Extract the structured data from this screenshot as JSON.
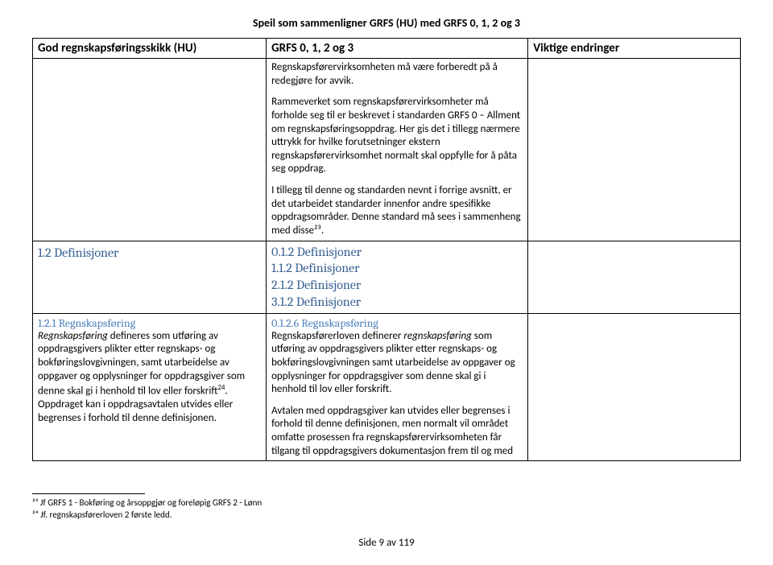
{
  "pageTitle": "Speil som sammenligner GRFS (HU) med GRFS 0, 1, 2 og 3",
  "headers": {
    "c1": "God regnskapsføringsskikk (HU)",
    "c2": "GRFS 0, 1, 2 og 3",
    "c3": "Viktige endringer"
  },
  "row1": {
    "c2p1": "Regnskapsførervirksomheten må være forberedt på å redegjøre for avvik.",
    "c2p2": "Rammeverket som regnskapsførervirksomheter må forholde seg til er beskrevet i standarden GRFS 0 – Allment om regnskapsføringsoppdrag. Her gis det i tillegg nærmere uttrykk for hvilke forutsetninger ekstern regnskapsførervirksomhet normalt skal oppfylle for å påta seg oppdrag.",
    "c2p3": "I tillegg til denne og standarden nevnt i forrige avsnitt, er det utarbeidet standarder innenfor andre spesifikke oppdragsområder. Denne standard må sees i sammenheng med disse²³."
  },
  "row2": {
    "c1h": "1.2 Definisjoner",
    "c2h1": "0.1.2  Definisjoner",
    "c2h2": "1.1.2  Definisjoner",
    "c2h3": "2.1.2  Definisjoner",
    "c2h4": "3.1.2  Definisjoner"
  },
  "row3": {
    "c1h": "1.2.1 Regnskapsføring",
    "c1p": "Regnskapsføring defineres som utføring av oppdragsgivers plikter etter regnskaps- og bokføringslovgivningen, samt utarbeidelse av oppgaver og opplysninger for oppdragsgiver som denne skal gi i henhold til lov eller forskrift²⁴. Oppdraget kan i oppdragsavtalen utvides eller begrenses i forhold til denne definisjonen.",
    "c2h": "0.1.2.6 Regnskapsføring",
    "c2p1": "Regnskapsførerloven definerer regnskapsføring som utføring av oppdragsgivers plikter etter regnskaps- og bokføringslovgivningen samt utarbeidelse av oppgaver og opplysninger for oppdragsgiver som denne skal gi i henhold til lov eller forskrift.",
    "c2p2": "Avtalen med oppdragsgiver kan utvides eller begrenses i forhold til denne definisjonen, men normalt vil området omfatte prosessen fra regnskapsførervirksomheten får tilgang til oppdragsgivers dokumentasjon frem til og med"
  },
  "footnotes": {
    "f23": "²³ Jf GRFS 1 - Bokføring og årsoppgjør og foreløpig GRFS 2 - Lønn",
    "f24": "²⁴ Jf. regnskapsførerloven 2 første ledd."
  },
  "pageNum": "Side 9 av 119"
}
